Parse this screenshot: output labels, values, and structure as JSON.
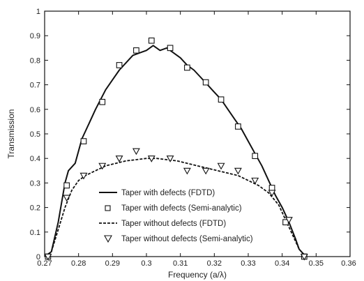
{
  "chart_data": {
    "type": "line",
    "title": "",
    "xlabel": "Frequency (a/λ)",
    "ylabel": "Transmission",
    "xlim": [
      0.27,
      0.36
    ],
    "ylim": [
      0,
      1
    ],
    "x_ticks": [
      "0.27",
      "0.28",
      "0.29",
      "0.3",
      "0.31",
      "0.32",
      "0.33",
      "0.34",
      "0.35"
    ],
    "x_tick_last": "0.36",
    "y_ticks": [
      "0",
      "0.1",
      "0.2",
      "0.3",
      "0.4",
      "0.5",
      "0.6",
      "0.7",
      "0.8",
      "0.9",
      "1"
    ],
    "grid": false,
    "legend_position": "lower-center",
    "series": [
      {
        "name": "Taper with defects (FDTD)",
        "style": "solid",
        "color": "#111111",
        "points": [
          [
            0.27,
            0.0
          ],
          [
            0.272,
            0.02
          ],
          [
            0.274,
            0.14
          ],
          [
            0.276,
            0.3
          ],
          [
            0.277,
            0.35
          ],
          [
            0.279,
            0.38
          ],
          [
            0.281,
            0.48
          ],
          [
            0.283,
            0.54
          ],
          [
            0.285,
            0.6
          ],
          [
            0.288,
            0.68
          ],
          [
            0.29,
            0.72
          ],
          [
            0.292,
            0.76
          ],
          [
            0.294,
            0.79
          ],
          [
            0.296,
            0.82
          ],
          [
            0.298,
            0.83
          ],
          [
            0.3,
            0.84
          ],
          [
            0.302,
            0.86
          ],
          [
            0.304,
            0.84
          ],
          [
            0.306,
            0.85
          ],
          [
            0.308,
            0.83
          ],
          [
            0.31,
            0.81
          ],
          [
            0.312,
            0.78
          ],
          [
            0.314,
            0.76
          ],
          [
            0.316,
            0.73
          ],
          [
            0.318,
            0.7
          ],
          [
            0.32,
            0.67
          ],
          [
            0.322,
            0.64
          ],
          [
            0.324,
            0.6
          ],
          [
            0.326,
            0.56
          ],
          [
            0.328,
            0.52
          ],
          [
            0.33,
            0.47
          ],
          [
            0.332,
            0.42
          ],
          [
            0.334,
            0.37
          ],
          [
            0.336,
            0.31
          ],
          [
            0.338,
            0.25
          ],
          [
            0.34,
            0.2
          ],
          [
            0.342,
            0.14
          ],
          [
            0.344,
            0.07
          ],
          [
            0.345,
            0.03
          ],
          [
            0.347,
            0.0
          ]
        ]
      },
      {
        "name": "Taper with defects (Semi-analytic)",
        "style": "square",
        "color": "#111111",
        "points": [
          [
            0.271,
            0.0
          ],
          [
            0.2765,
            0.29
          ],
          [
            0.2815,
            0.47
          ],
          [
            0.287,
            0.63
          ],
          [
            0.292,
            0.78
          ],
          [
            0.297,
            0.84
          ],
          [
            0.3015,
            0.88
          ],
          [
            0.307,
            0.85
          ],
          [
            0.312,
            0.77
          ],
          [
            0.3175,
            0.71
          ],
          [
            0.322,
            0.64
          ],
          [
            0.327,
            0.53
          ],
          [
            0.332,
            0.41
          ],
          [
            0.337,
            0.28
          ],
          [
            0.341,
            0.14
          ],
          [
            0.3465,
            0.0
          ]
        ]
      },
      {
        "name": "Taper without defects (FDTD)",
        "style": "dashed",
        "color": "#111111",
        "points": [
          [
            0.27,
            0.0
          ],
          [
            0.272,
            0.02
          ],
          [
            0.274,
            0.11
          ],
          [
            0.276,
            0.2
          ],
          [
            0.278,
            0.27
          ],
          [
            0.28,
            0.31
          ],
          [
            0.282,
            0.33
          ],
          [
            0.285,
            0.35
          ],
          [
            0.288,
            0.37
          ],
          [
            0.291,
            0.38
          ],
          [
            0.294,
            0.39
          ],
          [
            0.297,
            0.395
          ],
          [
            0.3,
            0.4
          ],
          [
            0.303,
            0.4
          ],
          [
            0.306,
            0.395
          ],
          [
            0.309,
            0.39
          ],
          [
            0.312,
            0.38
          ],
          [
            0.315,
            0.37
          ],
          [
            0.318,
            0.36
          ],
          [
            0.321,
            0.35
          ],
          [
            0.324,
            0.34
          ],
          [
            0.327,
            0.33
          ],
          [
            0.33,
            0.31
          ],
          [
            0.333,
            0.29
          ],
          [
            0.336,
            0.26
          ],
          [
            0.339,
            0.21
          ],
          [
            0.341,
            0.15
          ],
          [
            0.343,
            0.09
          ],
          [
            0.345,
            0.03
          ],
          [
            0.347,
            0.0
          ]
        ]
      },
      {
        "name": "Taper without defects (Semi-analytic)",
        "style": "triangle",
        "color": "#111111",
        "points": [
          [
            0.271,
            0.0
          ],
          [
            0.2765,
            0.24
          ],
          [
            0.2815,
            0.33
          ],
          [
            0.287,
            0.37
          ],
          [
            0.292,
            0.4
          ],
          [
            0.297,
            0.43
          ],
          [
            0.3015,
            0.4
          ],
          [
            0.307,
            0.4
          ],
          [
            0.312,
            0.35
          ],
          [
            0.3175,
            0.35
          ],
          [
            0.322,
            0.37
          ],
          [
            0.327,
            0.35
          ],
          [
            0.332,
            0.31
          ],
          [
            0.337,
            0.26
          ],
          [
            0.342,
            0.15
          ],
          [
            0.3465,
            0.0
          ]
        ]
      }
    ]
  }
}
